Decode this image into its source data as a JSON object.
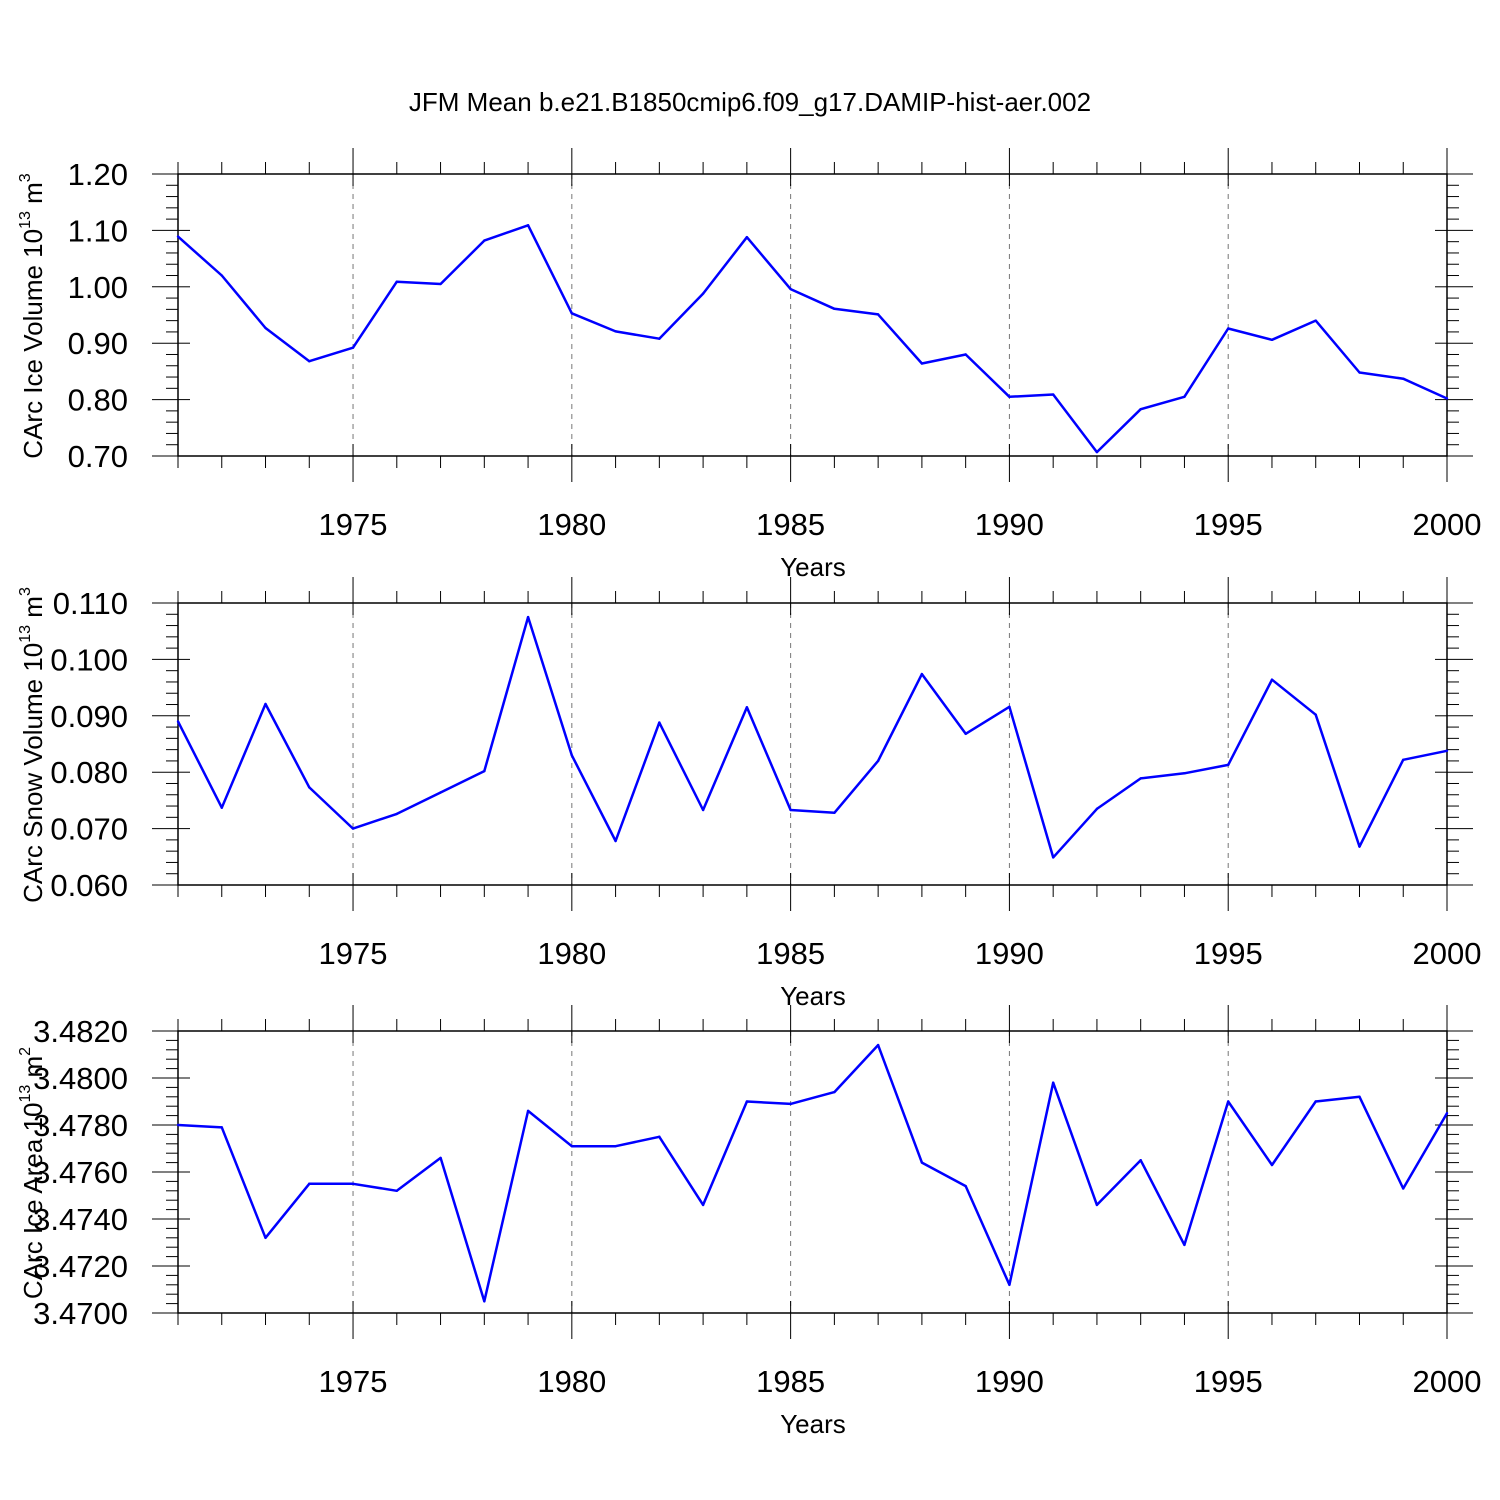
{
  "title": "JFM Mean b.e21.B1850cmip6.f09_g17.DAMIP-hist-aer.002",
  "colors": {
    "line": "#0000ff",
    "axis": "#000000",
    "grid": "#777777"
  },
  "chart_data": [
    {
      "type": "line",
      "xlabel": "Years",
      "ylabel": {
        "main": "CArc Ice Volume 10",
        "sup1": "13",
        "unit": " m",
        "sup2": "3"
      },
      "xlim": [
        1971,
        2000
      ],
      "ylim": [
        0.7,
        1.2
      ],
      "x_ticks": [
        1975,
        1980,
        1985,
        1990,
        1995,
        2000
      ],
      "y_ticks": [
        "0.70",
        "0.80",
        "0.90",
        "1.00",
        "1.10",
        "1.20"
      ],
      "grid": "vertical dashed at major x ticks",
      "x": [
        1971,
        1972,
        1973,
        1974,
        1975,
        1976,
        1977,
        1978,
        1979,
        1980,
        1981,
        1982,
        1983,
        1984,
        1985,
        1986,
        1987,
        1988,
        1989,
        1990,
        1991,
        1992,
        1993,
        1994,
        1995,
        1996,
        1997,
        1998,
        1999,
        2000
      ],
      "values": [
        1.089,
        1.02,
        0.927,
        0.868,
        0.892,
        1.009,
        1.005,
        1.082,
        1.109,
        0.953,
        0.921,
        0.908,
        0.988,
        1.088,
        0.996,
        0.961,
        0.951,
        0.864,
        0.88,
        0.805,
        0.809,
        0.707,
        0.783,
        0.805,
        0.926,
        0.906,
        0.94,
        0.848,
        0.837,
        0.802
      ]
    },
    {
      "type": "line",
      "xlabel": "Years",
      "ylabel": {
        "main": "CArc Snow Volume 10",
        "sup1": "13",
        "unit": " m",
        "sup2": "3"
      },
      "xlim": [
        1971,
        2000
      ],
      "ylim": [
        0.06,
        0.11
      ],
      "x_ticks": [
        1975,
        1980,
        1985,
        1990,
        1995,
        2000
      ],
      "y_ticks": [
        "0.060",
        "0.070",
        "0.080",
        "0.090",
        "0.100",
        "0.110"
      ],
      "grid": "vertical dashed at major x ticks",
      "x": [
        1971,
        1972,
        1973,
        1974,
        1975,
        1976,
        1977,
        1978,
        1979,
        1980,
        1981,
        1982,
        1983,
        1984,
        1985,
        1986,
        1987,
        1988,
        1989,
        1990,
        1991,
        1992,
        1993,
        1994,
        1995,
        1996,
        1997,
        1998,
        1999,
        2000
      ],
      "values": [
        0.089,
        0.0737,
        0.0921,
        0.0773,
        0.07,
        0.0726,
        0.0764,
        0.0802,
        0.1075,
        0.083,
        0.0678,
        0.0888,
        0.0733,
        0.0915,
        0.0733,
        0.0728,
        0.082,
        0.0974,
        0.0868,
        0.0916,
        0.0649,
        0.0735,
        0.0789,
        0.0798,
        0.0813,
        0.0964,
        0.0902,
        0.0668,
        0.0822,
        0.0838
      ]
    },
    {
      "type": "line",
      "xlabel": "Years",
      "ylabel": {
        "main": "CArc Ice Area 10",
        "sup1": "13",
        "unit": " m",
        "sup2": "2"
      },
      "xlim": [
        1971,
        2000
      ],
      "ylim": [
        3.47,
        3.482
      ],
      "x_ticks": [
        1975,
        1980,
        1985,
        1990,
        1995,
        2000
      ],
      "y_ticks": [
        "3.4700",
        "3.4720",
        "3.4740",
        "3.4760",
        "3.4780",
        "3.4800",
        "3.4820"
      ],
      "grid": "vertical dashed at major x ticks",
      "x": [
        1971,
        1972,
        1973,
        1974,
        1975,
        1976,
        1977,
        1978,
        1979,
        1980,
        1981,
        1982,
        1983,
        1984,
        1985,
        1986,
        1987,
        1988,
        1989,
        1990,
        1991,
        1992,
        1993,
        1994,
        1995,
        1996,
        1997,
        1998,
        1999,
        2000
      ],
      "values": [
        3.478,
        3.4779,
        3.4732,
        3.4755,
        3.4755,
        3.4752,
        3.4766,
        3.4705,
        3.4786,
        3.4771,
        3.4771,
        3.4775,
        3.4746,
        3.479,
        3.4789,
        3.4794,
        3.4814,
        3.4764,
        3.4754,
        3.4712,
        3.4798,
        3.4746,
        3.4765,
        3.4729,
        3.479,
        3.4763,
        3.479,
        3.4792,
        3.4753,
        3.4785
      ]
    }
  ]
}
